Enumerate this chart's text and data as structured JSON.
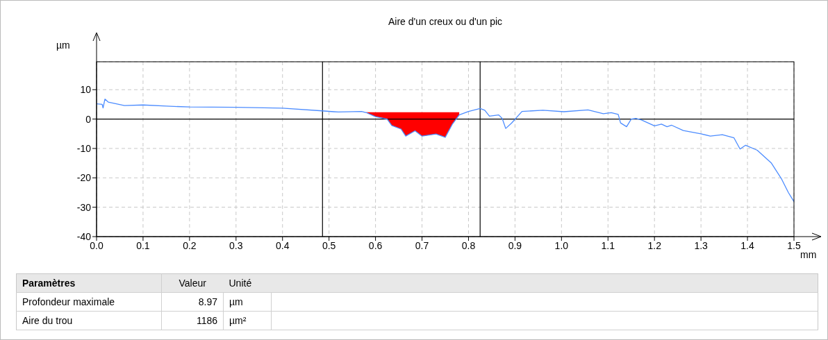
{
  "chart_data": {
    "type": "line",
    "title": "Aire d'un creux ou d'un pic",
    "xlabel": "mm",
    "ylabel": "µm",
    "x": [
      0.0,
      0.012,
      0.014,
      0.018,
      0.025,
      0.06,
      0.1,
      0.15,
      0.2,
      0.3,
      0.4,
      0.485,
      0.51,
      0.52,
      0.57,
      0.58,
      0.6,
      0.625,
      0.635,
      0.655,
      0.665,
      0.685,
      0.7,
      0.73,
      0.75,
      0.765,
      0.78,
      0.8,
      0.825,
      0.835,
      0.845,
      0.865,
      0.8725,
      0.88,
      0.8925,
      0.915,
      0.96,
      1.005,
      1.057,
      1.09,
      1.107,
      1.122,
      1.127,
      1.14,
      1.15,
      1.16,
      1.172,
      1.2,
      1.215,
      1.227,
      1.237,
      1.262,
      1.3,
      1.32,
      1.346,
      1.371,
      1.384,
      1.396,
      1.421,
      1.451,
      1.473,
      1.488,
      1.5
    ],
    "series": [
      {
        "color": "#4c8cff",
        "values": [
          5.2,
          5.0,
          3.8,
          6.8,
          5.8,
          4.6,
          4.8,
          4.4,
          4.1,
          4.0,
          3.7,
          2.8,
          2.5,
          2.4,
          2.6,
          2.2,
          0.8,
          0,
          -2.2,
          -3.4,
          -5.8,
          -4.0,
          -5.8,
          -5.1,
          -6.2,
          -1.8,
          1.4,
          2.6,
          3.6,
          3.0,
          1.0,
          1.4,
          0.2,
          -3.2,
          -1.4,
          2.6,
          3.0,
          2.5,
          3.1,
          1.8,
          2.2,
          1.6,
          -1.3,
          -2.6,
          0,
          0.2,
          -0.3,
          -2.3,
          -1.7,
          -2.6,
          -2.1,
          -3.9,
          -5.0,
          -5.8,
          -5.3,
          -6.4,
          -10.2,
          -8.9,
          -10.6,
          -14.9,
          -20.3,
          -25.0,
          -28.1
        ],
        "lower": [
          null,
          null,
          null,
          null,
          null,
          null,
          null,
          null,
          null,
          null,
          null,
          null,
          null,
          null,
          null,
          2.2,
          0.8,
          0,
          -2.2,
          -3.4,
          -5.8,
          -4.0,
          -5.8,
          -5.1,
          -6.2,
          -1.8,
          1.4,
          null,
          null,
          null,
          null,
          null,
          null,
          null,
          null,
          null,
          null,
          null,
          null,
          null,
          null,
          null,
          null,
          null,
          null,
          null,
          null,
          null,
          null,
          null,
          null,
          null,
          null,
          null,
          null,
          null,
          null,
          null,
          null,
          null,
          null,
          null,
          null
        ],
        "upper": [
          null,
          null,
          null,
          null,
          null,
          null,
          null,
          null,
          null,
          null,
          null,
          null,
          null,
          null,
          null,
          2.3,
          2.3,
          2.3,
          2.3,
          2.3,
          2.3,
          2.3,
          2.3,
          2.3,
          2.3,
          2.3,
          2.3,
          null,
          null,
          null,
          null,
          null,
          null,
          null,
          null,
          null,
          null,
          null,
          null,
          null,
          null,
          null,
          null,
          null,
          null,
          null,
          null,
          null,
          null,
          null,
          null,
          null,
          null,
          null,
          null,
          null,
          null,
          null,
          null,
          null,
          null,
          null,
          null
        ]
      }
    ],
    "xlim": [
      0,
      1.5
    ],
    "xticks": [
      {
        "value": 0,
        "label": "0.0"
      },
      0.1,
      0.2,
      0.3,
      0.4,
      0.5,
      0.6,
      0.7,
      0.8,
      0.9,
      {
        "value": 1,
        "label": "1.0"
      },
      1.1,
      1.2,
      1.3,
      1.4,
      1.5
    ],
    "ylim": [
      -40,
      19.5
    ],
    "yticks": [
      -40,
      -30,
      -20,
      -10,
      0,
      10
    ],
    "ref_lines": [
      {
        "axis": "y",
        "value": 0,
        "color": "#000000"
      },
      {
        "axis": "x",
        "value": 0.486,
        "color": "#000000"
      },
      {
        "axis": "x",
        "value": 0.825,
        "color": "#000000"
      }
    ],
    "grid": true,
    "legend": false,
    "annotations": [
      "Paramètres",
      "Valeur",
      "Unité",
      "Profondeur maximale",
      "8.97",
      "µm",
      "Aire du trou",
      "1186",
      "µm²"
    ]
  }
}
